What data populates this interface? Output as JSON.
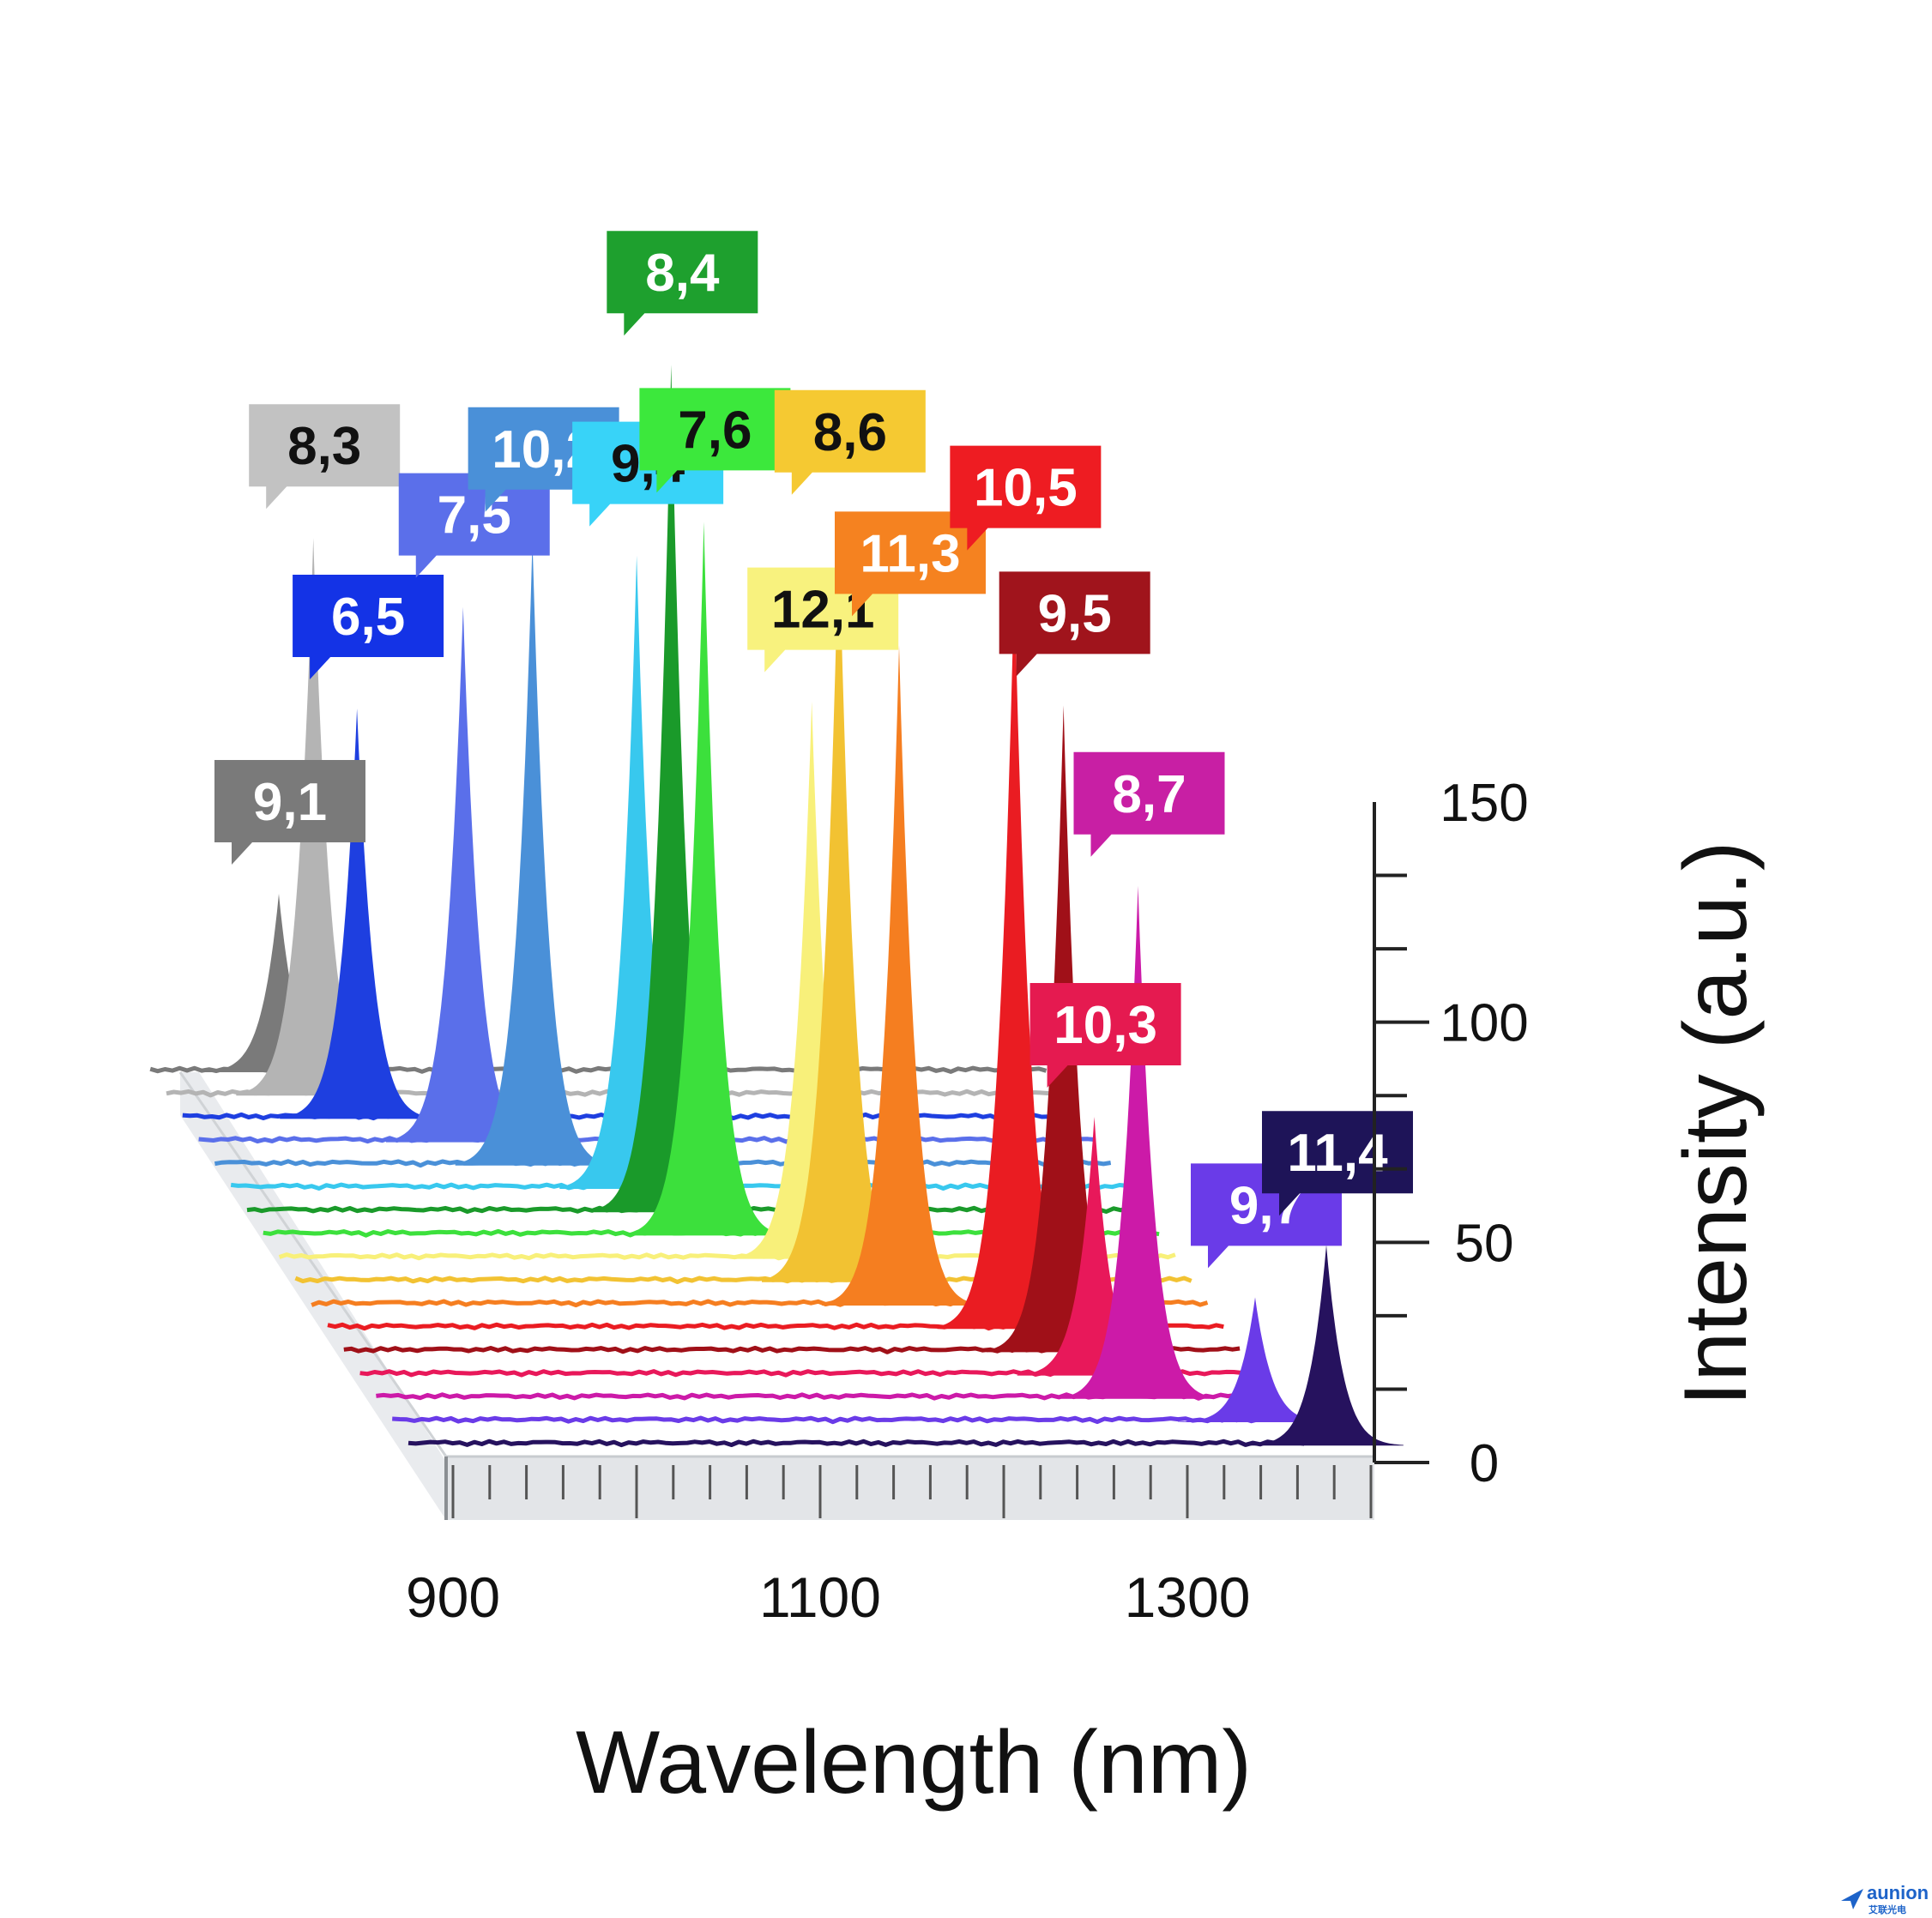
{
  "chart_data": {
    "type": "area",
    "xlabel": "Wavelength (nm)",
    "ylabel": "Intensity (a.u.)",
    "xlim": [
      900,
      1400
    ],
    "ylim": [
      0,
      150
    ],
    "x_ticks": [
      "900",
      "1100",
      "1300"
    ],
    "y_ticks": [
      "0",
      "50",
      "100",
      "150"
    ],
    "series": [
      {
        "label": "9,1",
        "peak_nm": 950,
        "peak_intensity": 40,
        "color": "#7a7a7a",
        "label_color": "#7a7a7a",
        "text_color": "#ffffff"
      },
      {
        "label": "8,3",
        "peak_nm": 960,
        "peak_intensity": 125,
        "color": "#b4b4b4",
        "label_color": "#c2c2c2",
        "text_color": "#111111"
      },
      {
        "label": "6,5",
        "peak_nm": 975,
        "peak_intensity": 92,
        "color": "#1e3fe0",
        "label_color": "#1433e6",
        "text_color": "#ffffff"
      },
      {
        "label": "7,5",
        "peak_nm": 1024,
        "peak_intensity": 120,
        "color": "#5a6fea",
        "label_color": "#5b6fea",
        "text_color": "#ffffff"
      },
      {
        "label": "10,2",
        "peak_nm": 1053,
        "peak_intensity": 140,
        "color": "#4a90d8",
        "label_color": "#4a90d8",
        "text_color": "#ffffff"
      },
      {
        "label": "9,4",
        "peak_nm": 1101,
        "peak_intensity": 142,
        "color": "#38c8ee",
        "label_color": "#38d3f8",
        "text_color": "#111111"
      },
      {
        "label": "8,4",
        "peak_nm": 1111,
        "peak_intensity": 190,
        "color": "#1a9a2a",
        "label_color": "#1ea02e",
        "text_color": "#ffffff"
      },
      {
        "label": "7,6",
        "peak_nm": 1120,
        "peak_intensity": 160,
        "color": "#3ce03c",
        "label_color": "#3ce83c",
        "text_color": "#111111"
      },
      {
        "label": "12,1",
        "peak_nm": 1170,
        "peak_intensity": 125,
        "color": "#f8f07a",
        "label_color": "#f8f27e",
        "text_color": "#111111"
      },
      {
        "label": "8,6",
        "peak_nm": 1176,
        "peak_intensity": 170,
        "color": "#f2c232",
        "label_color": "#f5c932",
        "text_color": "#111111"
      },
      {
        "label": "11,3",
        "peak_nm": 1200,
        "peak_intensity": 148,
        "color": "#f57e20",
        "label_color": "#f58220",
        "text_color": "#ffffff"
      },
      {
        "label": "10,5",
        "peak_nm": 1254,
        "peak_intensity": 168,
        "color": "#ea1c22",
        "label_color": "#ee1c22",
        "text_color": "#ffffff"
      },
      {
        "label": "9,5",
        "peak_nm": 1272,
        "peak_intensity": 145,
        "color": "#a01018",
        "label_color": "#a0141c",
        "text_color": "#ffffff"
      },
      {
        "label": "10,3",
        "peak_nm": 1280,
        "peak_intensity": 58,
        "color": "#e8185a",
        "label_color": "#e51a50",
        "text_color": "#ffffff"
      },
      {
        "label": "8,7",
        "peak_nm": 1295,
        "peak_intensity": 115,
        "color": "#cc1aa8",
        "label_color": "#c81fa4",
        "text_color": "#ffffff"
      },
      {
        "label": "9,7",
        "peak_nm": 1350,
        "peak_intensity": 28,
        "color": "#6a3be8",
        "label_color": "#6a3be8",
        "text_color": "#ffffff"
      },
      {
        "label": "11,4",
        "peak_nm": 1380,
        "peak_intensity": 45,
        "color": "#26125e",
        "label_color": "#1e1458",
        "text_color": "#ffffff"
      }
    ]
  },
  "watermark": {
    "brand": "aunion",
    "sub": "艾联光电"
  }
}
